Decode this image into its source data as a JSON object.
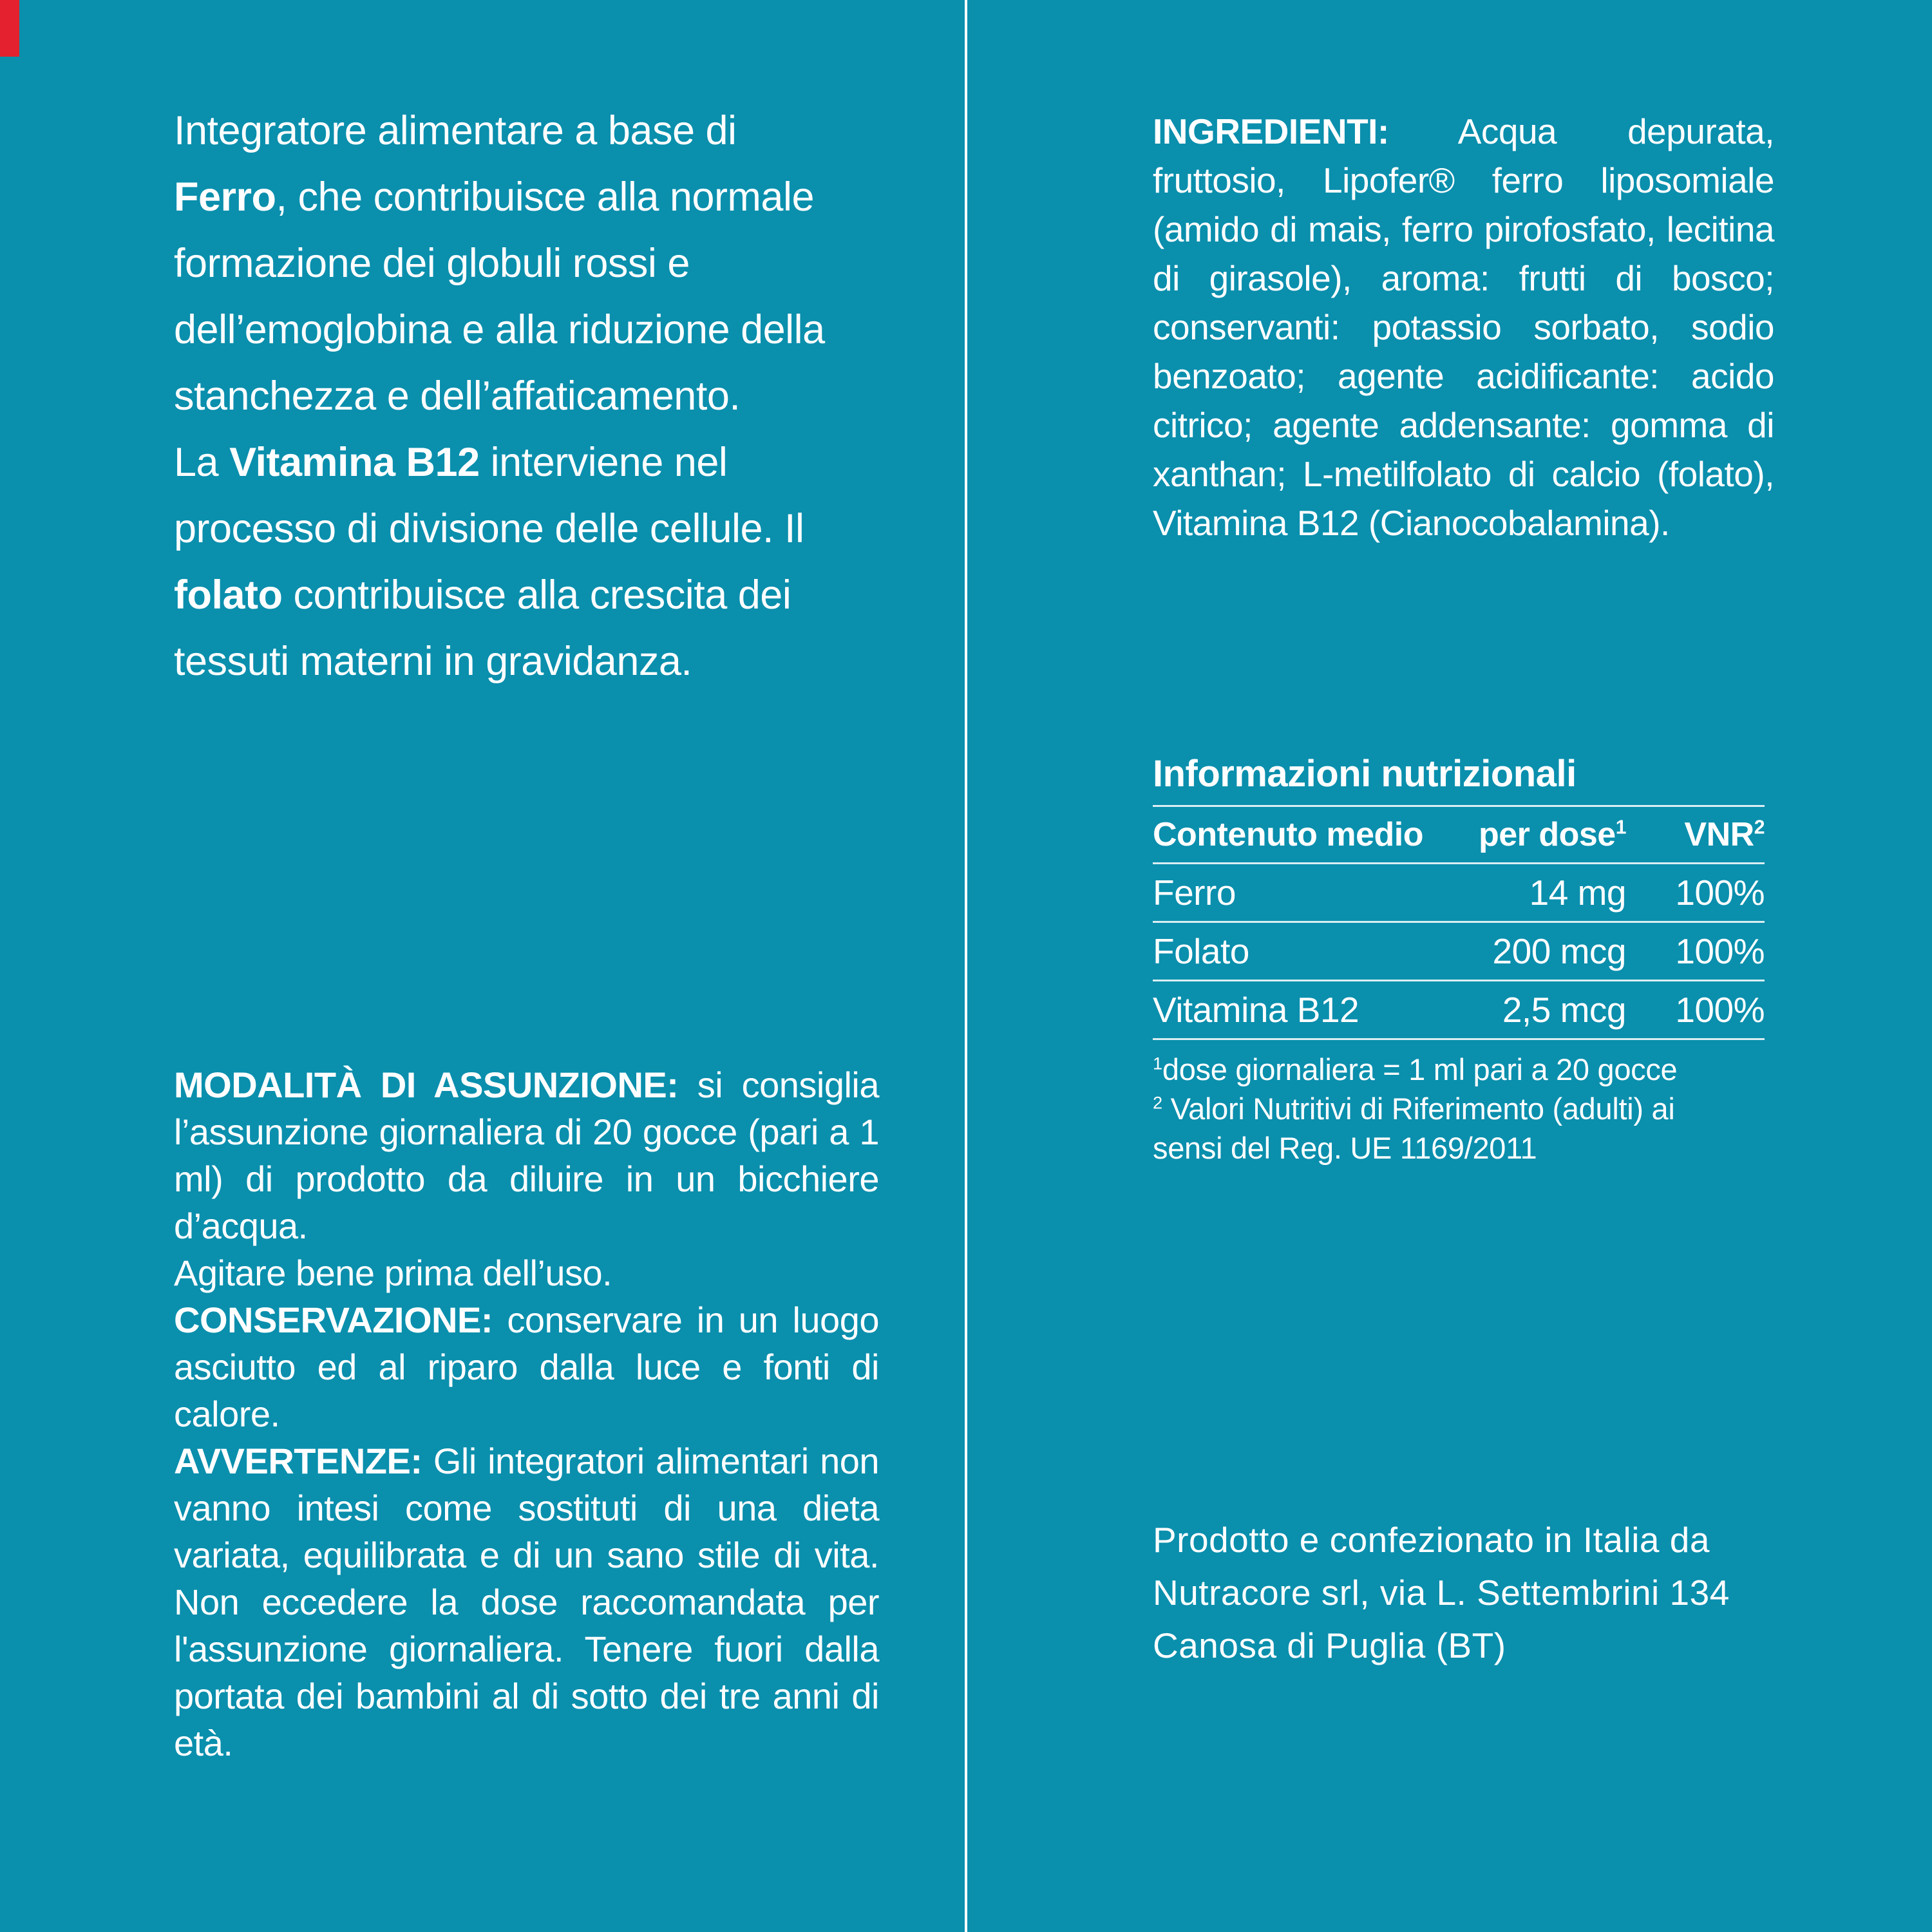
{
  "label": {
    "background_color": "#0a8fad",
    "text_color": "#ffffff",
    "corner_mark_color": "#e4212e"
  },
  "left_column": {
    "description": {
      "segments": [
        {
          "text": "Integratore alimentare a base di "
        },
        {
          "text": "Ferro",
          "bold": true
        },
        {
          "text": ", che contribuisce alla normale formazione dei globuli rossi e dell’emoglobina e alla riduzione della stanchezza e dell’affaticamento."
        },
        {
          "text": "La "
        },
        {
          "text": "Vitamina B12",
          "bold": true
        },
        {
          "text": " interviene nel processo di divisione delle cellule. Il "
        },
        {
          "text": "folato",
          "bold": true
        },
        {
          "text": " contribuisce alla crescita dei tessuti materni in gravidanza."
        }
      ]
    },
    "usage": {
      "segments": [
        {
          "text": "MODALITÀ DI ASSUNZIONE:",
          "bold": true
        },
        {
          "text": " si consiglia l’assunzione giornaliera di 20 gocce (pari a 1 ml) di prodotto da diluire in un bicchiere d’acqua."
        },
        {
          "text": "Agitare bene prima dell’uso."
        },
        {
          "text": "CONSERVAZIONE:",
          "bold": true
        },
        {
          "text": " conservare in un luogo asciutto ed al riparo dalla luce e fonti di calore."
        },
        {
          "text": "AVVERTENZE:",
          "bold": true
        },
        {
          "text": " Gli integratori alimentari non vanno intesi come sostituti di una dieta variata, equilibrata e di un sano stile di vita. Non eccedere la dose raccomandata per l'assunzione giornaliera. Tenere fuori dalla portata dei bambini al di sotto dei tre anni di età."
        }
      ]
    }
  },
  "right_column": {
    "ingredients": {
      "segments": [
        {
          "text": "INGREDIENTI:",
          "bold": true
        },
        {
          "text": " Acqua depurata, fruttosio, Lipofer® ferro liposomiale (amido di mais, ferro pirofosfato, lecitina di girasole), aroma: frutti di bosco; conservanti: potassio sorbato, sodio benzoato; agente acidificante: acido citrico; agente addensante: gomma di xanthan; L-metilfolato di calcio (folato), Vitamina B12 (Cianocobalamina)."
        }
      ]
    },
    "nutrition": {
      "title": "Informazioni nutrizionali",
      "columns": [
        {
          "label": "Contenuto medio",
          "sup": ""
        },
        {
          "label": "per dose",
          "sup": "1"
        },
        {
          "label": "VNR",
          "sup": "2"
        }
      ],
      "rows": [
        {
          "name": "Ferro",
          "per_dose": "14 mg",
          "vnr": "100%"
        },
        {
          "name": "Folato",
          "per_dose": "200 mcg",
          "vnr": "100%"
        },
        {
          "name": "Vitamina B12",
          "per_dose": "2,5 mcg",
          "vnr": "100%"
        }
      ],
      "footnotes": [
        {
          "sup": "1",
          "text": "dose giornaliera = 1 ml pari a 20 gocce"
        },
        {
          "sup": "2",
          "text": " Valori Nutritivi di Riferimento (adulti) ai sensi del Reg. UE 1169/2011"
        }
      ]
    },
    "manufacturer": {
      "lines": [
        "Prodotto e confezionato in Italia da",
        "Nutracore srl, via L. Settembrini 134",
        "Canosa di Puglia (BT)"
      ]
    }
  }
}
